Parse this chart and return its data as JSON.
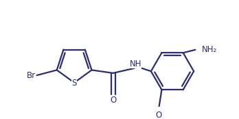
{
  "bg_color": "#ffffff",
  "line_color": "#2c2c6e",
  "atom_color": "#2c2c6e",
  "line_width": 1.6,
  "font_size": 8.5,
  "figsize": [
    3.48,
    1.74
  ],
  "dpi": 100,
  "xlim": [
    0,
    348
  ],
  "ylim": [
    0,
    174
  ]
}
